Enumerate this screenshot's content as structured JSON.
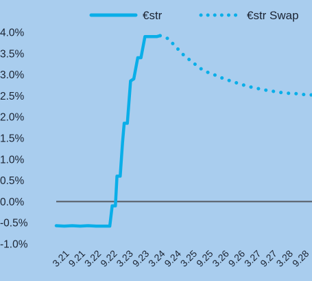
{
  "colors": {
    "background": "#a9cdee",
    "series": "#0aaee8",
    "zero_line": "#555a62",
    "text": "#1b2433"
  },
  "chart_data": {
    "type": "line",
    "title": "",
    "xlabel": "",
    "ylabel": "",
    "ylim": [
      -1.0,
      4.0
    ],
    "y_ticks": [
      "4.0%",
      "3.5%",
      "3.0%",
      "2.5%",
      "2.0%",
      "1.5%",
      "1.0%",
      "0.5%",
      "0.0%",
      "-0.5%",
      "-1.0%"
    ],
    "x_ticks": [
      "3.21",
      "9.21",
      "3.22",
      "9.22",
      "3.23",
      "9.23",
      "3.24",
      "9.24",
      "3.25",
      "9.25",
      "3.26",
      "9.26",
      "3.27",
      "9.27",
      "3.28",
      "9.28"
    ],
    "xlim": [
      0,
      16
    ],
    "legend": {
      "position": "top"
    },
    "grid": false,
    "series": [
      {
        "name": "€str",
        "style": "solid",
        "points": [
          [
            0.0,
            -0.57
          ],
          [
            0.5,
            -0.58
          ],
          [
            1.0,
            -0.57
          ],
          [
            1.5,
            -0.58
          ],
          [
            2.0,
            -0.57
          ],
          [
            2.5,
            -0.58
          ],
          [
            3.0,
            -0.58
          ],
          [
            3.35,
            -0.58
          ],
          [
            3.5,
            -0.1
          ],
          [
            3.7,
            -0.1
          ],
          [
            3.8,
            0.6
          ],
          [
            4.0,
            0.6
          ],
          [
            4.15,
            1.4
          ],
          [
            4.25,
            1.85
          ],
          [
            4.45,
            1.85
          ],
          [
            4.65,
            2.85
          ],
          [
            4.85,
            2.9
          ],
          [
            5.1,
            3.4
          ],
          [
            5.3,
            3.4
          ],
          [
            5.55,
            3.9
          ],
          [
            6.0,
            3.9
          ],
          [
            6.3,
            3.9
          ],
          [
            6.5,
            3.92
          ]
        ]
      },
      {
        "name": "€str Swap",
        "style": "dotted",
        "points": [
          [
            6.5,
            3.92
          ],
          [
            7.0,
            3.85
          ],
          [
            7.5,
            3.65
          ],
          [
            8.0,
            3.45
          ],
          [
            8.5,
            3.3
          ],
          [
            9.0,
            3.15
          ],
          [
            9.5,
            3.05
          ],
          [
            10.0,
            2.98
          ],
          [
            10.5,
            2.9
          ],
          [
            11.0,
            2.84
          ],
          [
            11.5,
            2.78
          ],
          [
            12.0,
            2.72
          ],
          [
            12.5,
            2.68
          ],
          [
            13.0,
            2.64
          ],
          [
            13.5,
            2.61
          ],
          [
            14.0,
            2.58
          ],
          [
            14.5,
            2.56
          ],
          [
            15.0,
            2.55
          ],
          [
            15.5,
            2.53
          ],
          [
            16.0,
            2.52
          ]
        ]
      }
    ]
  }
}
